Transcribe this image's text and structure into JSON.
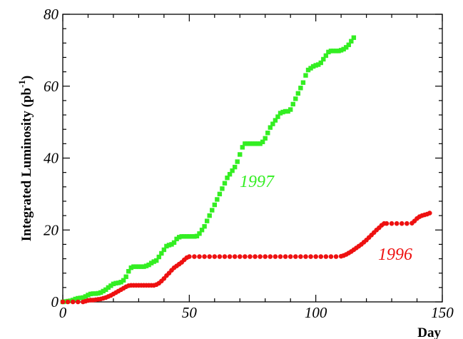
{
  "chart_data": {
    "type": "scatter",
    "title": "",
    "xlabel": "Day",
    "ylabel": "Integrated Luminosity (pb",
    "ylabel_sup": "-1",
    "ylabel_close": ")",
    "xlim": [
      0,
      150
    ],
    "ylim": [
      0,
      80
    ],
    "xticks": [
      0,
      50,
      100,
      150
    ],
    "yticks": [
      0,
      20,
      40,
      60,
      80
    ],
    "grid": false,
    "series": [
      {
        "name": "1997",
        "color": "#33ee22",
        "marker": "square",
        "points": [
          [
            0,
            0
          ],
          [
            1,
            0.1
          ],
          [
            2,
            0.2
          ],
          [
            3,
            0.3
          ],
          [
            4,
            0.5
          ],
          [
            5,
            0.8
          ],
          [
            6,
            1.0
          ],
          [
            7,
            1.1
          ],
          [
            8,
            1.2
          ],
          [
            9,
            1.5
          ],
          [
            10,
            1.9
          ],
          [
            11,
            2.2
          ],
          [
            12,
            2.3
          ],
          [
            13,
            2.3
          ],
          [
            14,
            2.4
          ],
          [
            15,
            2.6
          ],
          [
            16,
            3.0
          ],
          [
            17,
            3.4
          ],
          [
            18,
            4.0
          ],
          [
            19,
            4.5
          ],
          [
            20,
            5.0
          ],
          [
            21,
            5.2
          ],
          [
            22,
            5.3
          ],
          [
            23,
            5.5
          ],
          [
            24,
            6.0
          ],
          [
            25,
            7.0
          ],
          [
            26,
            8.5
          ],
          [
            27,
            9.5
          ],
          [
            28,
            9.8
          ],
          [
            29,
            9.8
          ],
          [
            30,
            9.8
          ],
          [
            31,
            9.8
          ],
          [
            32,
            9.8
          ],
          [
            33,
            10.0
          ],
          [
            34,
            10.3
          ],
          [
            35,
            10.8
          ],
          [
            36,
            11.2
          ],
          [
            37,
            11.5
          ],
          [
            38,
            12.5
          ],
          [
            39,
            13.5
          ],
          [
            40,
            14.5
          ],
          [
            41,
            15.5
          ],
          [
            42,
            15.8
          ],
          [
            43,
            16.0
          ],
          [
            44,
            16.5
          ],
          [
            45,
            17.5
          ],
          [
            46,
            18.0
          ],
          [
            47,
            18.2
          ],
          [
            48,
            18.2
          ],
          [
            49,
            18.2
          ],
          [
            50,
            18.2
          ],
          [
            51,
            18.2
          ],
          [
            52,
            18.2
          ],
          [
            53,
            18.3
          ],
          [
            54,
            19.0
          ],
          [
            55,
            20.0
          ],
          [
            56,
            21.0
          ],
          [
            57,
            22.5
          ],
          [
            58,
            24.0
          ],
          [
            59,
            25.5
          ],
          [
            60,
            27.0
          ],
          [
            61,
            28.5
          ],
          [
            62,
            30.0
          ],
          [
            63,
            31.5
          ],
          [
            64,
            33.0
          ],
          [
            65,
            34.5
          ],
          [
            66,
            35.5
          ],
          [
            67,
            36.5
          ],
          [
            68,
            37.5
          ],
          [
            69,
            39.0
          ],
          [
            70,
            41.0
          ],
          [
            71,
            43.0
          ],
          [
            72,
            44.0
          ],
          [
            73,
            44.0
          ],
          [
            74,
            44.0
          ],
          [
            75,
            44.0
          ],
          [
            76,
            44.0
          ],
          [
            77,
            44.0
          ],
          [
            78,
            44.0
          ],
          [
            79,
            44.5
          ],
          [
            80,
            45.5
          ],
          [
            81,
            47.0
          ],
          [
            82,
            48.5
          ],
          [
            83,
            49.5
          ],
          [
            84,
            50.5
          ],
          [
            85,
            51.5
          ],
          [
            86,
            52.5
          ],
          [
            87,
            52.8
          ],
          [
            88,
            53.0
          ],
          [
            89,
            53.0
          ],
          [
            90,
            53.5
          ],
          [
            91,
            55.0
          ],
          [
            92,
            56.5
          ],
          [
            93,
            58.0
          ],
          [
            94,
            59.5
          ],
          [
            95,
            61.0
          ],
          [
            96,
            63.0
          ],
          [
            97,
            64.5
          ],
          [
            98,
            65.0
          ],
          [
            99,
            65.5
          ],
          [
            100,
            65.8
          ],
          [
            101,
            66.0
          ],
          [
            102,
            66.5
          ],
          [
            103,
            67.5
          ],
          [
            104,
            68.5
          ],
          [
            105,
            69.5
          ],
          [
            106,
            69.8
          ],
          [
            107,
            69.8
          ],
          [
            108,
            69.8
          ],
          [
            109,
            69.8
          ],
          [
            110,
            70.0
          ],
          [
            111,
            70.3
          ],
          [
            112,
            70.8
          ],
          [
            113,
            71.5
          ],
          [
            114,
            72.5
          ],
          [
            115,
            73.5
          ]
        ]
      },
      {
        "name": "1996",
        "color": "#ee1111",
        "marker": "circle",
        "points": [
          [
            0,
            0
          ],
          [
            2,
            0
          ],
          [
            4,
            0
          ],
          [
            6,
            0
          ],
          [
            8,
            0
          ],
          [
            9,
            0.2
          ],
          [
            10,
            0.4
          ],
          [
            11,
            0.5
          ],
          [
            12,
            0.5
          ],
          [
            13,
            0.6
          ],
          [
            14,
            0.7
          ],
          [
            15,
            0.8
          ],
          [
            16,
            1.0
          ],
          [
            17,
            1.2
          ],
          [
            18,
            1.5
          ],
          [
            19,
            1.8
          ],
          [
            20,
            2.2
          ],
          [
            21,
            2.6
          ],
          [
            22,
            3.0
          ],
          [
            23,
            3.4
          ],
          [
            24,
            3.8
          ],
          [
            25,
            4.2
          ],
          [
            26,
            4.5
          ],
          [
            27,
            4.6
          ],
          [
            28,
            4.6
          ],
          [
            29,
            4.6
          ],
          [
            30,
            4.6
          ],
          [
            31,
            4.6
          ],
          [
            32,
            4.6
          ],
          [
            33,
            4.6
          ],
          [
            34,
            4.6
          ],
          [
            35,
            4.6
          ],
          [
            36,
            4.6
          ],
          [
            37,
            4.8
          ],
          [
            38,
            5.2
          ],
          [
            39,
            5.8
          ],
          [
            40,
            6.5
          ],
          [
            41,
            7.3
          ],
          [
            42,
            8.0
          ],
          [
            43,
            8.8
          ],
          [
            44,
            9.5
          ],
          [
            45,
            10.0
          ],
          [
            46,
            10.5
          ],
          [
            47,
            11.0
          ],
          [
            48,
            11.7
          ],
          [
            49,
            12.3
          ],
          [
            50,
            12.6
          ],
          [
            52,
            12.6
          ],
          [
            54,
            12.6
          ],
          [
            56,
            12.6
          ],
          [
            58,
            12.6
          ],
          [
            60,
            12.6
          ],
          [
            62,
            12.6
          ],
          [
            64,
            12.6
          ],
          [
            66,
            12.6
          ],
          [
            68,
            12.6
          ],
          [
            70,
            12.6
          ],
          [
            72,
            12.6
          ],
          [
            74,
            12.6
          ],
          [
            76,
            12.6
          ],
          [
            78,
            12.6
          ],
          [
            80,
            12.6
          ],
          [
            82,
            12.6
          ],
          [
            84,
            12.6
          ],
          [
            86,
            12.6
          ],
          [
            88,
            12.6
          ],
          [
            90,
            12.6
          ],
          [
            92,
            12.6
          ],
          [
            94,
            12.6
          ],
          [
            96,
            12.6
          ],
          [
            98,
            12.6
          ],
          [
            100,
            12.6
          ],
          [
            102,
            12.6
          ],
          [
            104,
            12.6
          ],
          [
            106,
            12.6
          ],
          [
            108,
            12.6
          ],
          [
            110,
            12.7
          ],
          [
            111,
            12.9
          ],
          [
            112,
            13.2
          ],
          [
            113,
            13.6
          ],
          [
            114,
            14.0
          ],
          [
            115,
            14.5
          ],
          [
            116,
            15.0
          ],
          [
            117,
            15.5
          ],
          [
            118,
            16.0
          ],
          [
            119,
            16.6
          ],
          [
            120,
            17.2
          ],
          [
            121,
            17.9
          ],
          [
            122,
            18.6
          ],
          [
            123,
            19.3
          ],
          [
            124,
            20.0
          ],
          [
            125,
            20.6
          ],
          [
            126,
            21.3
          ],
          [
            127,
            21.8
          ],
          [
            128,
            21.8
          ],
          [
            130,
            21.8
          ],
          [
            132,
            21.8
          ],
          [
            134,
            21.8
          ],
          [
            136,
            21.8
          ],
          [
            138,
            21.9
          ],
          [
            139,
            22.5
          ],
          [
            140,
            23.2
          ],
          [
            141,
            23.7
          ],
          [
            142,
            24.0
          ],
          [
            143,
            24.2
          ],
          [
            144,
            24.4
          ],
          [
            145,
            24.7
          ]
        ]
      }
    ]
  }
}
